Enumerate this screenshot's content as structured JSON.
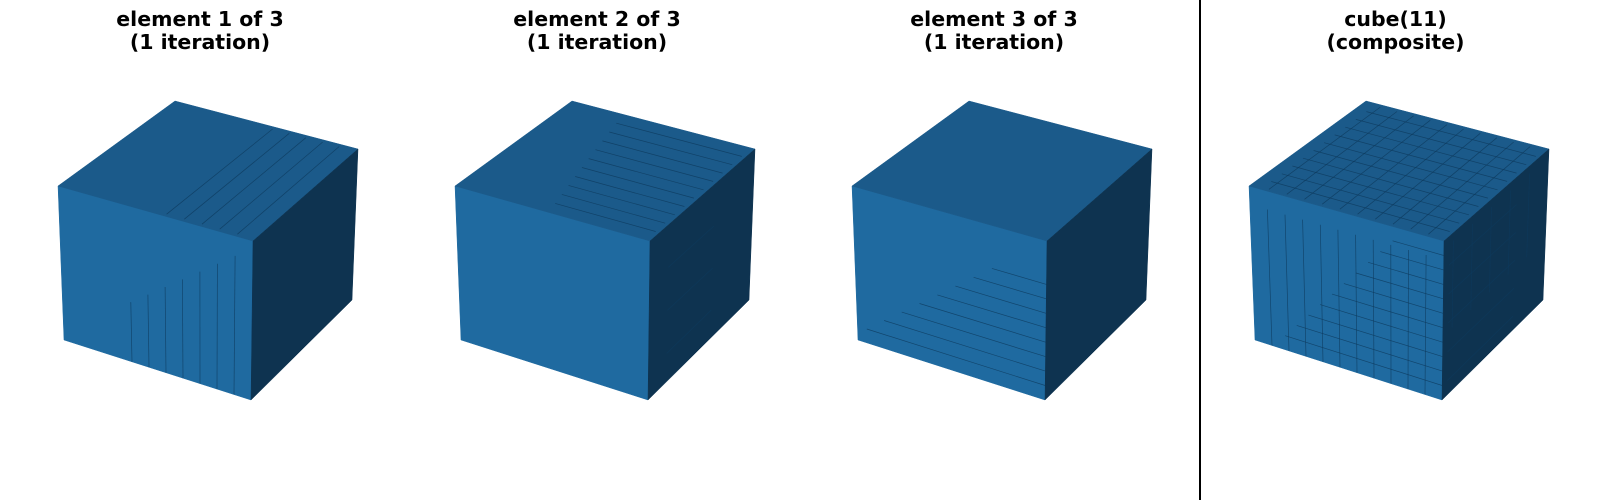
{
  "panels": [
    {
      "title_line1": "element 1 of 3",
      "title_line2": "(1 iteration)",
      "cube": {
        "n": 11,
        "pattern": "element-1"
      }
    },
    {
      "title_line1": "element 2 of 3",
      "title_line2": "(1 iteration)",
      "cube": {
        "n": 11,
        "pattern": "element-2"
      }
    },
    {
      "title_line1": "element 3 of 3",
      "title_line2": "(1 iteration)",
      "cube": {
        "n": 11,
        "pattern": "element-3"
      }
    },
    {
      "title_line1": "cube(11)",
      "title_line2": "(composite)",
      "cube": {
        "n": 11,
        "pattern": "composite"
      }
    }
  ],
  "colors": {
    "left_face": "#1f6aa0",
    "top_face": "#1b5a8a",
    "right_face": "#0e3350",
    "grid_line": "#0d3a5c",
    "divider": "#000000"
  }
}
